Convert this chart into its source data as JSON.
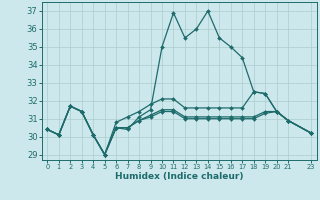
{
  "xlabel": "Humidex (Indice chaleur)",
  "xlim": [
    -0.5,
    23.5
  ],
  "ylim": [
    28.7,
    37.5
  ],
  "yticks": [
    29,
    30,
    31,
    32,
    33,
    34,
    35,
    36,
    37
  ],
  "xticks": [
    0,
    1,
    2,
    3,
    4,
    5,
    6,
    7,
    8,
    9,
    10,
    11,
    12,
    13,
    14,
    15,
    16,
    17,
    18,
    19,
    20,
    21,
    23
  ],
  "background_color": "#cde8ec",
  "grid_color": "#aacccc",
  "line_color": "#1e6b6b",
  "line1_x": [
    0,
    1,
    2,
    3,
    4,
    5,
    6,
    7,
    8,
    9,
    10,
    11,
    12,
    13,
    14,
    15,
    16,
    17,
    18,
    19,
    20,
    21,
    23
  ],
  "line1_y": [
    30.4,
    30.1,
    31.7,
    31.4,
    30.1,
    29.0,
    30.5,
    30.4,
    31.1,
    31.5,
    35.0,
    36.9,
    35.5,
    36.0,
    37.0,
    35.5,
    35.0,
    34.4,
    32.5,
    32.4,
    31.4,
    30.9,
    30.2
  ],
  "line2_x": [
    0,
    1,
    2,
    3,
    4,
    5,
    6,
    7,
    8,
    9,
    10,
    11,
    12,
    13,
    14,
    15,
    16,
    17,
    18,
    19,
    20,
    21,
    23
  ],
  "line2_y": [
    30.4,
    30.1,
    31.7,
    31.4,
    30.1,
    29.0,
    30.8,
    31.1,
    31.4,
    31.8,
    32.1,
    32.1,
    31.6,
    31.6,
    31.6,
    31.6,
    31.6,
    31.6,
    32.5,
    32.4,
    31.4,
    30.9,
    30.2
  ],
  "line3_x": [
    0,
    1,
    2,
    3,
    4,
    5,
    6,
    7,
    8,
    9,
    10,
    11,
    12,
    13,
    14,
    15,
    16,
    17,
    18,
    19,
    20,
    21,
    23
  ],
  "line3_y": [
    30.4,
    30.1,
    31.7,
    31.4,
    30.1,
    29.0,
    30.5,
    30.5,
    30.9,
    31.2,
    31.5,
    31.5,
    31.1,
    31.1,
    31.1,
    31.1,
    31.1,
    31.1,
    31.1,
    31.4,
    31.4,
    30.9,
    30.2
  ],
  "line4_x": [
    0,
    1,
    2,
    3,
    4,
    5,
    6,
    7,
    8,
    9,
    10,
    11,
    12,
    13,
    14,
    15,
    16,
    17,
    18,
    19,
    20,
    21,
    23
  ],
  "line4_y": [
    30.4,
    30.1,
    31.7,
    31.4,
    30.1,
    29.0,
    30.5,
    30.5,
    30.9,
    31.1,
    31.4,
    31.4,
    31.0,
    31.0,
    31.0,
    31.0,
    31.0,
    31.0,
    31.0,
    31.3,
    31.4,
    30.9,
    30.2
  ]
}
